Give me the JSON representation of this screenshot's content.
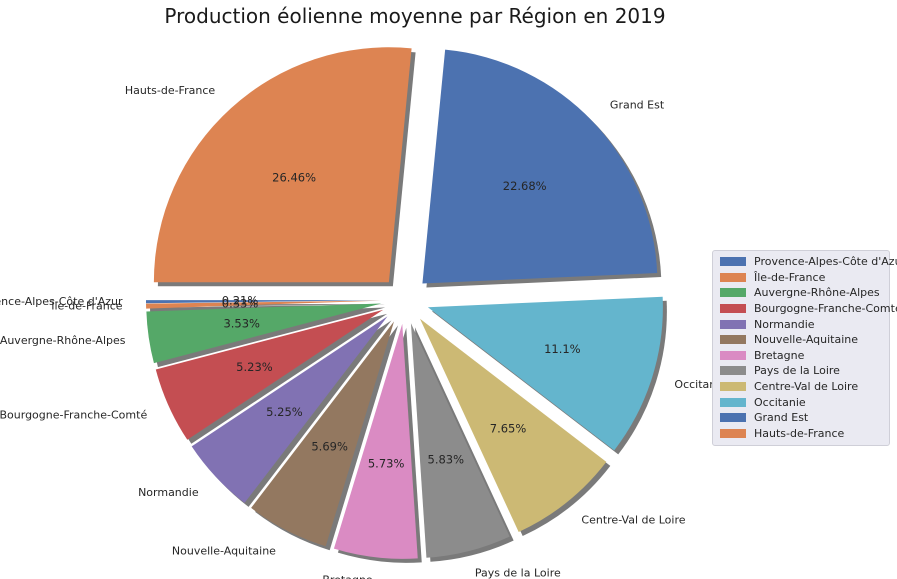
{
  "chart_data": {
    "type": "pie",
    "title": "Production éolienne moyenne par Région en 2019",
    "slices": [
      {
        "label": "Provence-Alpes-Côte d'Azur",
        "value": 0.21,
        "pct_label": "0.21%",
        "color": "#4c72b0"
      },
      {
        "label": "Île-de-France",
        "value": 0.33,
        "pct_label": "0.33%",
        "color": "#dd8452"
      },
      {
        "label": "Auvergne-Rhône-Alpes",
        "value": 3.53,
        "pct_label": "3.53%",
        "color": "#55a868"
      },
      {
        "label": "Bourgogne-Franche-Comté",
        "value": 5.23,
        "pct_label": "5.23%",
        "color": "#c44e52"
      },
      {
        "label": "Normandie",
        "value": 5.25,
        "pct_label": "5.25%",
        "color": "#8172b3"
      },
      {
        "label": "Nouvelle-Aquitaine",
        "value": 5.69,
        "pct_label": "5.69%",
        "color": "#937860"
      },
      {
        "label": "Bretagne",
        "value": 5.73,
        "pct_label": "5.73%",
        "color": "#da8bc3"
      },
      {
        "label": "Pays de la Loire",
        "value": 5.83,
        "pct_label": "5.83%",
        "color": "#8c8c8c"
      },
      {
        "label": "Centre-Val de Loire",
        "value": 7.65,
        "pct_label": "7.65%",
        "color": "#ccb974"
      },
      {
        "label": "Occitanie",
        "value": 11.1,
        "pct_label": "11.1%",
        "color": "#64b5cd"
      },
      {
        "label": "Grand Est",
        "value": 22.68,
        "pct_label": "22.68%",
        "color": "#4c72b0"
      },
      {
        "label": "Hauts-de-France",
        "value": 26.46,
        "pct_label": "26.46%",
        "color": "#dd8452"
      }
    ],
    "start_angle_deg": 180,
    "direction": "counterclockwise",
    "explode": true,
    "shadow": true,
    "legend_position": "right"
  }
}
